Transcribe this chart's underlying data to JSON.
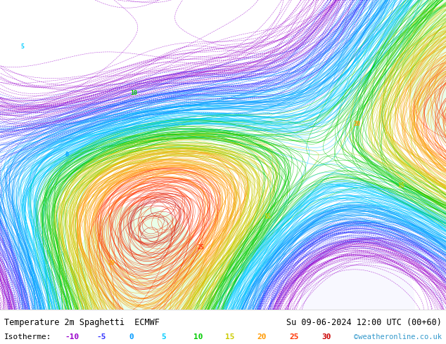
{
  "title_left": "Temperature 2m Spaghetti  ECMWF",
  "title_right": "Su 09-06-2024 12:00 UTC (00+60)",
  "legend_label": "Isotherme: −10  −5  0  5  10  15  20  25  30",
  "watermark": "©weatheronline.co.uk",
  "bg_color": "#ffffff",
  "footer_bg": "#f0f0f0",
  "map_bg": "#ffffff",
  "bottom_text_color": "#000000",
  "watermark_color": "#3399cc",
  "bottom_bar_height": 0.1,
  "isotherm_values": [
    -10,
    -5,
    0,
    5,
    10,
    15,
    20,
    25,
    30
  ],
  "isotherm_colors": [
    "#9900cc",
    "#3333ff",
    "#0099ff",
    "#00ccff",
    "#00cc00",
    "#cccc00",
    "#ff9900",
    "#ff3300",
    "#cc0000"
  ],
  "figsize": [
    6.34,
    4.9
  ],
  "dpi": 100
}
